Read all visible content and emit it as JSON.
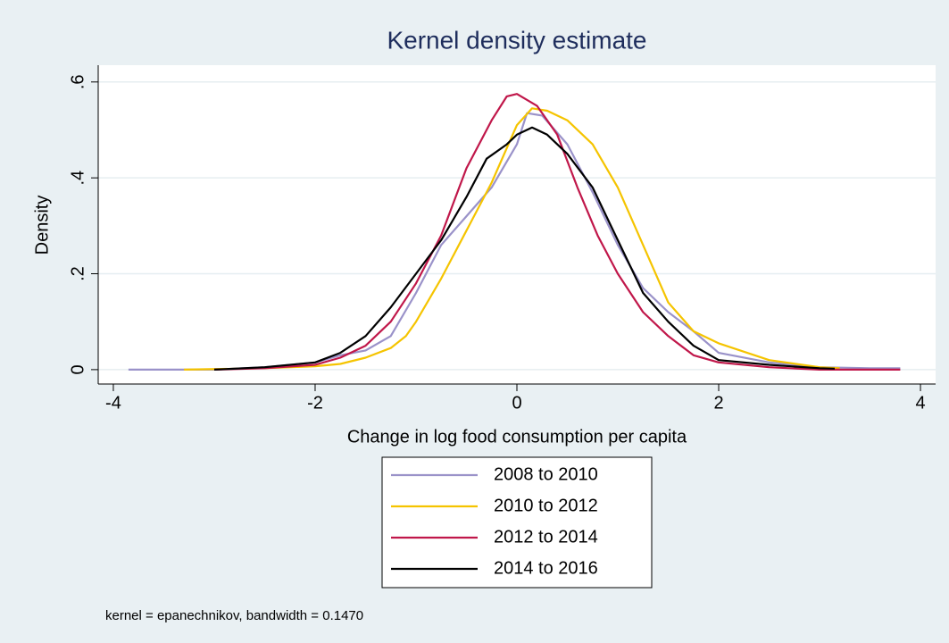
{
  "chart_data": {
    "type": "line",
    "title": "Kernel density estimate",
    "x_label": "Change in log food consumption per capita",
    "y_label": "Density",
    "note": "kernel = epanechnikov, bandwidth = 0.1470",
    "xlim": [
      -4.15,
      4.15
    ],
    "ylim": [
      -0.03,
      0.635
    ],
    "xticks": [
      -4,
      -2,
      0,
      2,
      4
    ],
    "yticks": [
      0,
      {
        "value": 0.2,
        "label": ".2"
      },
      {
        "value": 0.4,
        "label": ".4"
      },
      {
        "value": 0.6,
        "label": ".6"
      }
    ],
    "grid": true,
    "legend_position": "bottom",
    "series": [
      {
        "name": "2008 to 2010",
        "color": "#9a92c9",
        "x": [
          -3.85,
          -3.5,
          -3,
          -2.5,
          -2,
          -1.75,
          -1.5,
          -1.25,
          -1,
          -0.75,
          -0.5,
          -0.25,
          0,
          0.1,
          0.25,
          0.5,
          0.75,
          1,
          1.25,
          1.5,
          1.75,
          2,
          2.5,
          3,
          3.5,
          3.8
        ],
        "values": [
          0,
          0,
          0,
          0.005,
          0.015,
          0.03,
          0.04,
          0.07,
          0.16,
          0.26,
          0.32,
          0.38,
          0.47,
          0.535,
          0.53,
          0.47,
          0.37,
          0.26,
          0.17,
          0.12,
          0.08,
          0.035,
          0.015,
          0.005,
          0.003,
          0.003
        ]
      },
      {
        "name": "2010 to 2012",
        "color": "#f5c400",
        "x": [
          -3.3,
          -2.5,
          -2,
          -1.75,
          -1.5,
          -1.25,
          -1.1,
          -1,
          -0.75,
          -0.5,
          -0.25,
          0,
          0.15,
          0.3,
          0.5,
          0.75,
          1,
          1.25,
          1.5,
          1.75,
          2,
          2.5,
          3,
          3.2
        ],
        "values": [
          0,
          0.003,
          0.007,
          0.012,
          0.025,
          0.045,
          0.07,
          0.1,
          0.19,
          0.29,
          0.39,
          0.51,
          0.545,
          0.54,
          0.52,
          0.47,
          0.38,
          0.26,
          0.14,
          0.08,
          0.055,
          0.02,
          0.005,
          0.003
        ]
      },
      {
        "name": "2012 to 2014",
        "color": "#c0174a",
        "x": [
          -3,
          -2.5,
          -2,
          -1.75,
          -1.5,
          -1.25,
          -1,
          -0.75,
          -0.5,
          -0.25,
          -0.1,
          0,
          0.2,
          0.4,
          0.6,
          0.8,
          1,
          1.25,
          1.5,
          1.75,
          2,
          2.5,
          3,
          3.5,
          3.8
        ],
        "values": [
          0,
          0.003,
          0.01,
          0.025,
          0.05,
          0.1,
          0.18,
          0.28,
          0.42,
          0.52,
          0.57,
          0.575,
          0.55,
          0.49,
          0.38,
          0.28,
          0.2,
          0.12,
          0.07,
          0.03,
          0.015,
          0.005,
          0,
          0,
          0
        ]
      },
      {
        "name": "2014 to 2016",
        "color": "#000000",
        "x": [
          -3,
          -2.5,
          -2,
          -1.75,
          -1.5,
          -1.25,
          -1,
          -0.75,
          -0.5,
          -0.3,
          -0.1,
          0,
          0.15,
          0.3,
          0.5,
          0.75,
          1,
          1.25,
          1.5,
          1.75,
          2,
          2.5,
          3,
          3.15
        ],
        "values": [
          0,
          0.005,
          0.015,
          0.035,
          0.07,
          0.13,
          0.2,
          0.27,
          0.36,
          0.44,
          0.47,
          0.49,
          0.505,
          0.49,
          0.45,
          0.38,
          0.27,
          0.16,
          0.1,
          0.05,
          0.02,
          0.01,
          0.003,
          0.002
        ]
      }
    ]
  }
}
